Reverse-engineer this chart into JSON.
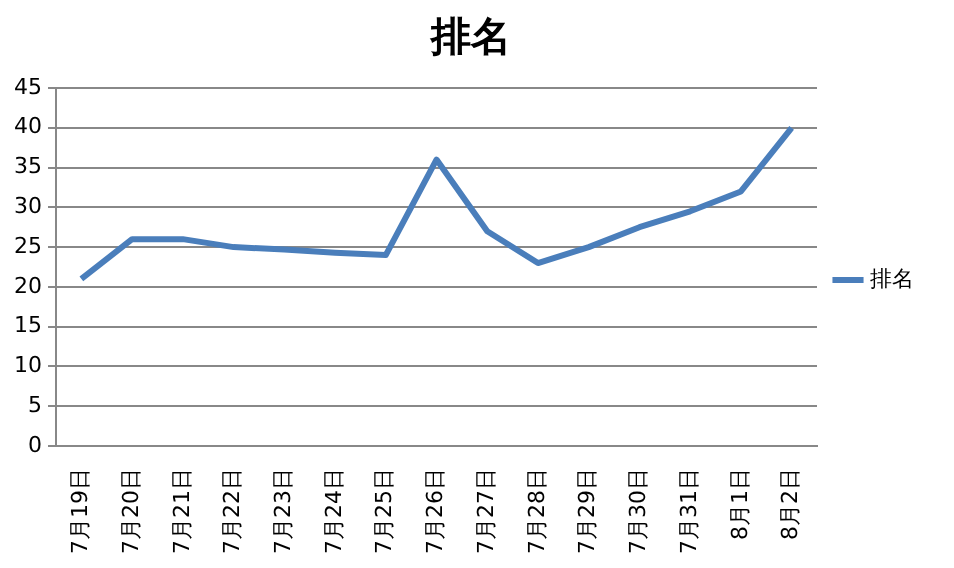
{
  "chart_data": {
    "type": "line",
    "title": "排名",
    "categories": [
      "7月19日",
      "7月20日",
      "7月21日",
      "7月22日",
      "7月23日",
      "7月24日",
      "7月25日",
      "7月26日",
      "7月27日",
      "7月28日",
      "7月29日",
      "7月30日",
      "7月31日",
      "8月1日",
      "8月2日"
    ],
    "series": [
      {
        "name": "排名",
        "color": "#4a7ebb",
        "values": [
          21,
          26,
          26,
          25,
          24.7,
          24.3,
          24,
          36,
          27,
          23,
          25,
          27.5,
          29.5,
          32,
          40
        ]
      }
    ],
    "ylim": [
      0,
      45
    ],
    "yticks": [
      0,
      5,
      10,
      15,
      20,
      25,
      30,
      35,
      40,
      45
    ],
    "grid": "y",
    "legend": "right",
    "marker": "none",
    "line_style": "solid"
  }
}
